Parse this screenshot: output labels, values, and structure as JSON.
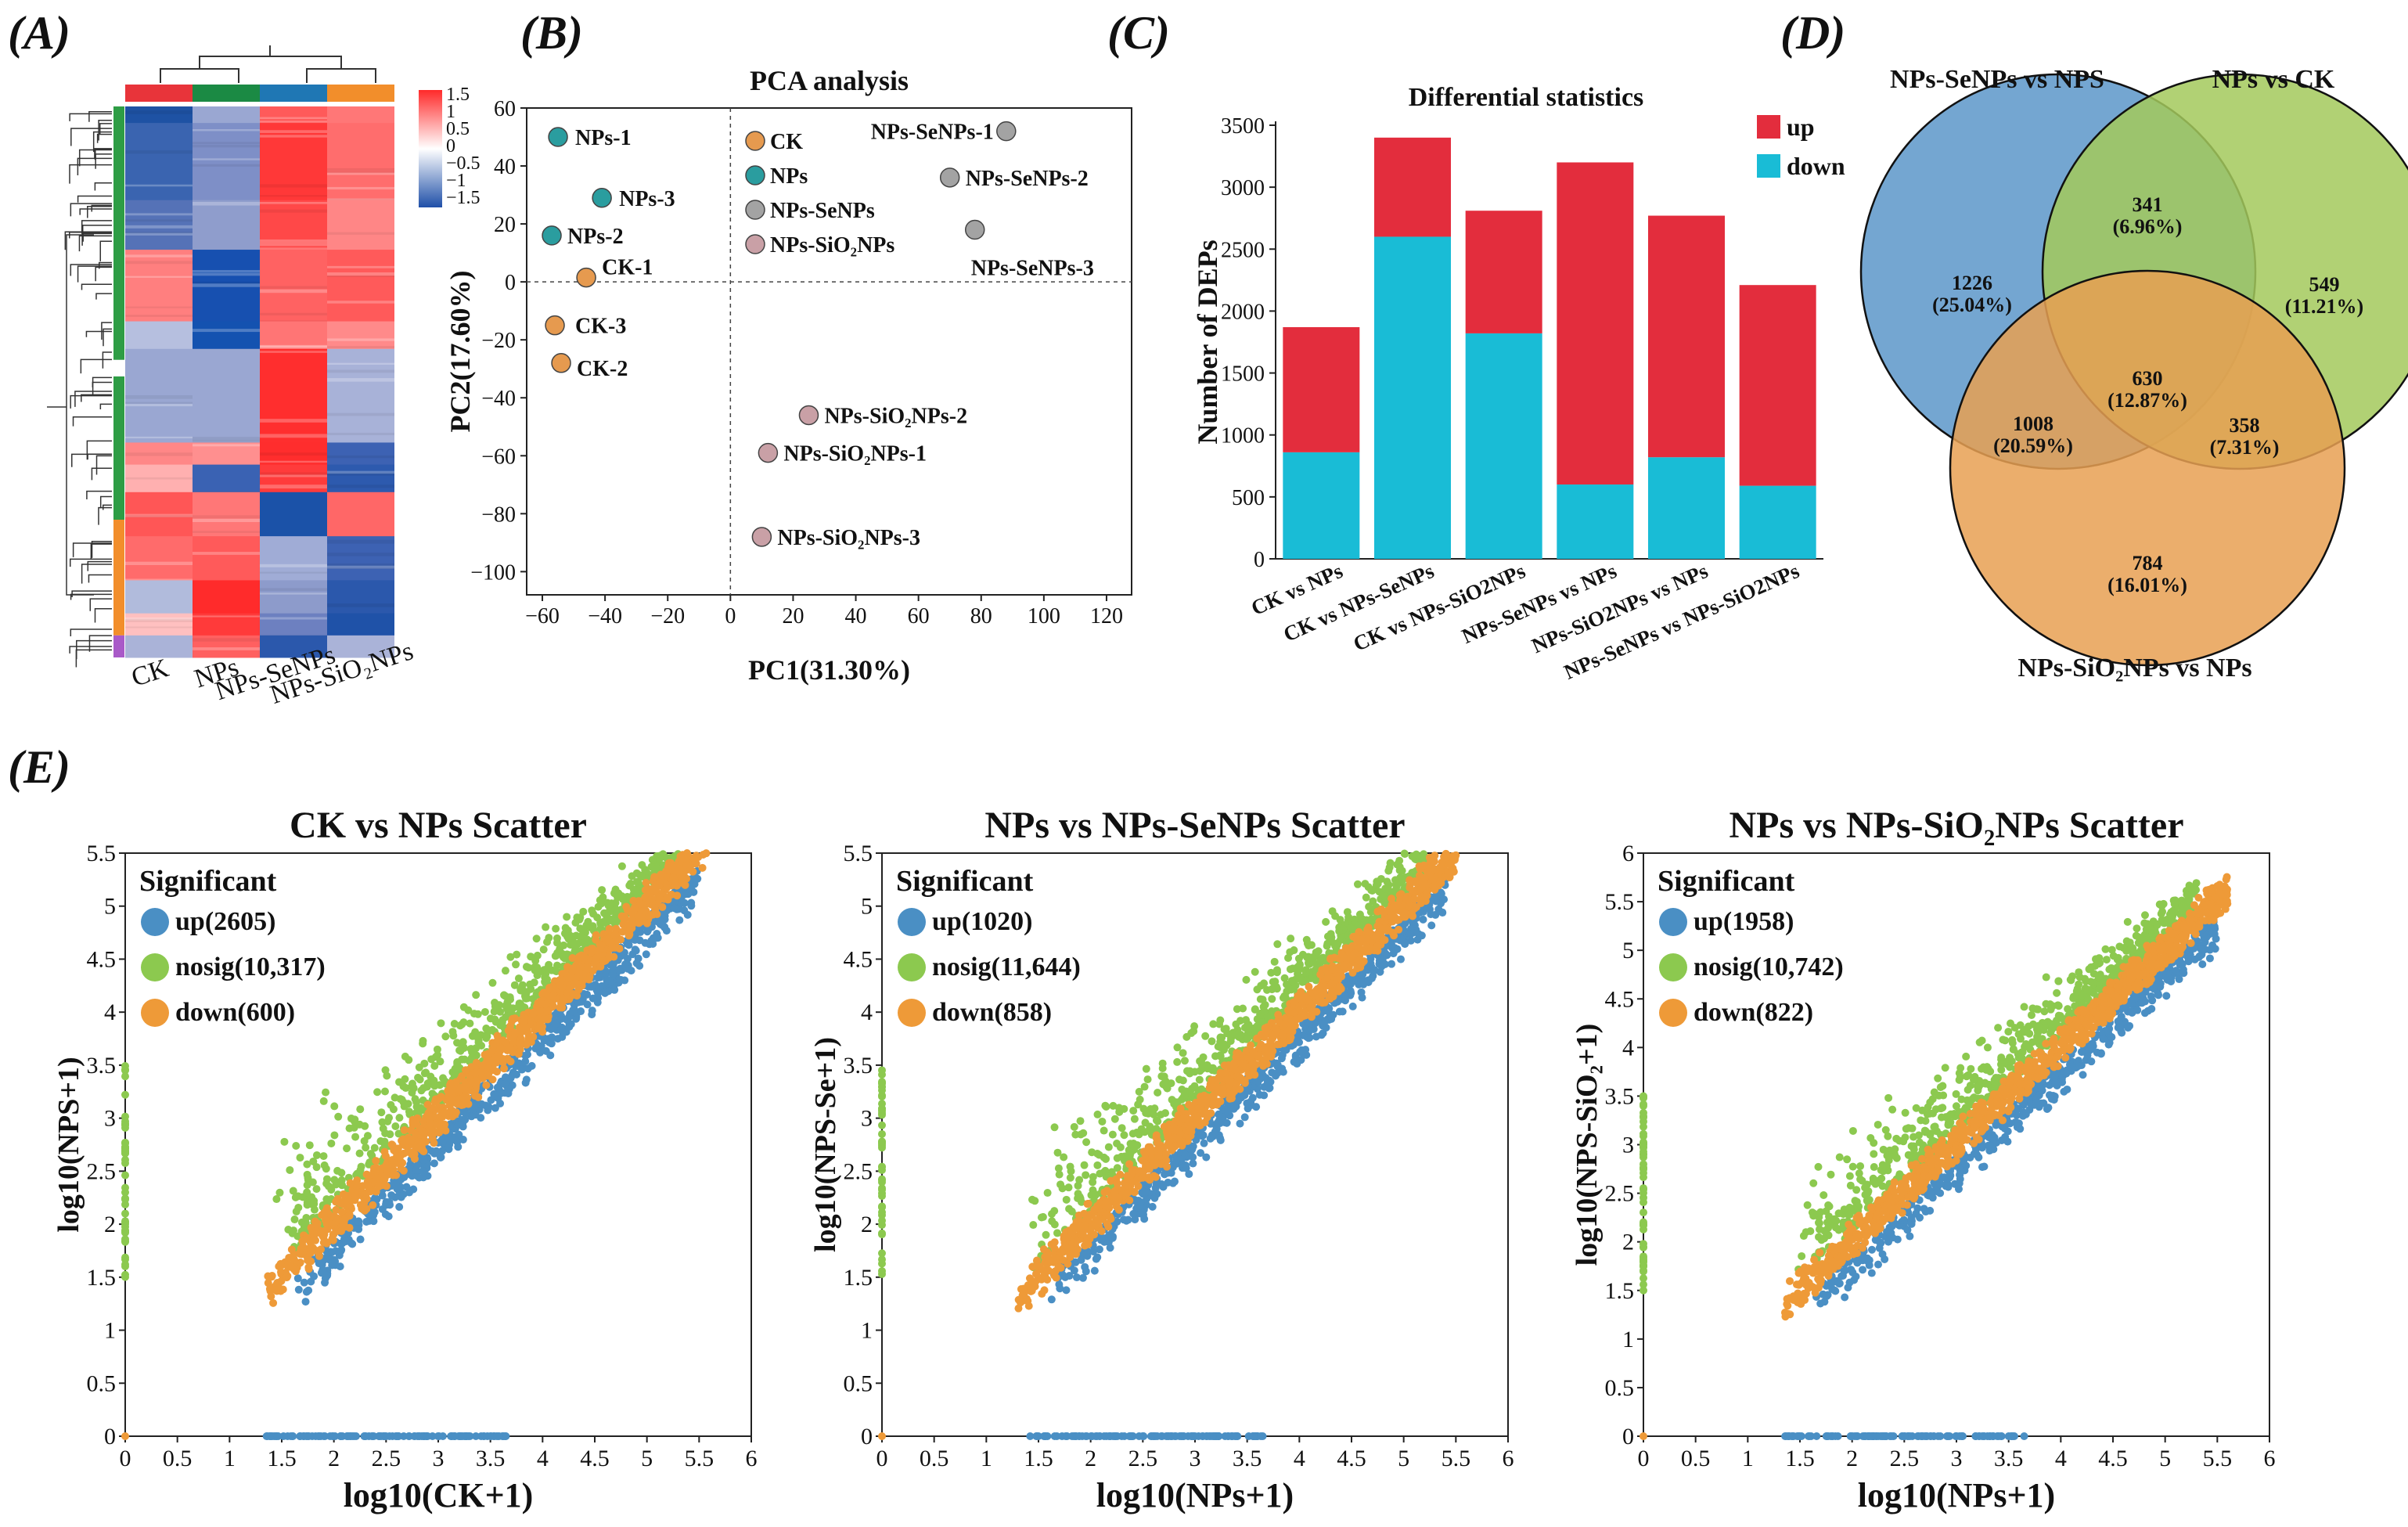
{
  "panels": {
    "a": "(A)",
    "b": "(B)",
    "c": "(C)",
    "d": "(D)",
    "e": "(E)"
  },
  "heatmap": {
    "samples": [
      "CK",
      "NPs",
      "NPs-SeNPs",
      "NPs-SiO₂NPs"
    ],
    "sample_colors": [
      "#e8343a",
      "#1b8a44",
      "#1f77b4",
      "#f28e2b"
    ],
    "scale_ticks": [
      "1.5",
      "1",
      "0.5",
      "0",
      "−0.5",
      "−1",
      "−1.5"
    ],
    "blocks": [
      {
        "h": 0.03,
        "c": [
          "#1e52a4",
          "#9aa7d2",
          "#ff5a5a",
          "#ff7777"
        ]
      },
      {
        "h": 0.14,
        "c": [
          "#3a64b0",
          "#7e8fc7",
          "#ff3838",
          "#ff6d6d"
        ]
      },
      {
        "h": 0.09,
        "c": [
          "#5572b7",
          "#8f9dcc",
          "#ff4848",
          "#ff8686"
        ]
      },
      {
        "h": 0.13,
        "c": [
          "#ff7f7f",
          "#1750b0",
          "#ff6262",
          "#ff5a5a"
        ]
      },
      {
        "h": 0.05,
        "c": [
          "#b6bfdf",
          "#1452b0",
          "#ff7575",
          "#ff8a8a"
        ]
      },
      {
        "h": 0.17,
        "c": [
          "#9aa7d2",
          "#9aa7d2",
          "#ff2e2e",
          "#a8b2d8"
        ]
      },
      {
        "h": 0.04,
        "c": [
          "#ff8787",
          "#ff8f8f",
          "#ff2d2d",
          "#3d62b3"
        ]
      },
      {
        "h": 0.05,
        "c": [
          "#ffb0b0",
          "#3a62b3",
          "#ff3b3b",
          "#2d5aae"
        ]
      },
      {
        "h": 0.08,
        "c": [
          "#ff5656",
          "#ff7777",
          "#1b52a8",
          "#ff6767"
        ]
      },
      {
        "h": 0.08,
        "c": [
          "#ff6b6b",
          "#ff5a5a",
          "#a0acd6",
          "#3d62b3"
        ]
      },
      {
        "h": 0.06,
        "c": [
          "#b1bbdc",
          "#ff2b2b",
          "#8d9bcb",
          "#2b58ac"
        ]
      },
      {
        "h": 0.04,
        "c": [
          "#ffc0c0",
          "#ff3a3a",
          "#6d80c0",
          "#1f52a8"
        ]
      },
      {
        "h": 0.04,
        "c": [
          "#aab3d8",
          "#ff6060",
          "#2b58ac",
          "#aab3d8"
        ]
      }
    ],
    "cluster_colors": [
      {
        "h": 0.46,
        "c": "#2e9d45"
      },
      {
        "h": 0.03,
        "c": "#ffffff"
      },
      {
        "h": 0.26,
        "c": "#2e9d45"
      },
      {
        "h": 0.21,
        "c": "#f28e2b"
      },
      {
        "h": 0.04,
        "c": "#a95ac8"
      }
    ]
  },
  "venn": {
    "sets": [
      "NPs-SeNPs vs NPS",
      "NPs vs CK",
      "NPs-SiO₂NPs vs NPs"
    ],
    "colors": [
      "#5c97c9",
      "#a3c95c",
      "#e8a052"
    ],
    "regions": [
      {
        "count": "1226",
        "pct": "(25.04%)"
      },
      {
        "count": "341",
        "pct": "(6.96%)"
      },
      {
        "count": "549",
        "pct": "(11.21%)"
      },
      {
        "count": "630",
        "pct": "(12.87%)"
      },
      {
        "count": "1008",
        "pct": "(20.59%)"
      },
      {
        "count": "358",
        "pct": "(7.31%)"
      },
      {
        "count": "784",
        "pct": "(16.01%)"
      }
    ]
  },
  "chart_data": [
    {
      "type": "scatter",
      "panel": "B",
      "title": "PCA analysis",
      "xlabel": "PC1(31.30%)",
      "ylabel": "PC2(17.60%)",
      "xlim": [
        -65,
        128
      ],
      "ylim": [
        -108,
        60
      ],
      "xticks": [
        -60,
        -40,
        -20,
        0,
        20,
        40,
        60,
        80,
        100,
        120
      ],
      "yticks": [
        60,
        40,
        20,
        0,
        -20,
        -40,
        -60,
        -80,
        -100
      ],
      "groups": [
        {
          "name": "CK",
          "color": "#e69a4f"
        },
        {
          "name": "NPs",
          "color": "#2a9d9f"
        },
        {
          "name": "NPs-SeNPs",
          "color": "#a3a3a3"
        },
        {
          "name": "NPs-SiO₂NPs",
          "color": "#c9a0a6"
        }
      ],
      "points": [
        {
          "label": "NPs-1",
          "g": 1,
          "x": -55,
          "y": 50
        },
        {
          "label": "NPs-3",
          "g": 1,
          "x": -41,
          "y": 29
        },
        {
          "label": "NPs-2",
          "g": 1,
          "x": -57,
          "y": 16
        },
        {
          "label": "CK-1",
          "g": 0,
          "x": -46,
          "y": 1.5
        },
        {
          "label": "CK-3",
          "g": 0,
          "x": -56,
          "y": -15
        },
        {
          "label": "CK-2",
          "g": 0,
          "x": -54,
          "y": -28
        },
        {
          "label": "NPs-SeNPs-1",
          "g": 2,
          "x": 88,
          "y": 52
        },
        {
          "label": "NPs-SeNPs-2",
          "g": 2,
          "x": 70,
          "y": 36
        },
        {
          "label": "NPs-SeNPs-3",
          "g": 2,
          "x": 78,
          "y": 18
        },
        {
          "label": "NPs-SiO₂NPs-2",
          "g": 3,
          "x": 25,
          "y": -46
        },
        {
          "label": "NPs-SiO₂NPs-1",
          "g": 3,
          "x": 12,
          "y": -59
        },
        {
          "label": "NPs-SiO₂NPs-3",
          "g": 3,
          "x": 10,
          "y": -88
        }
      ]
    },
    {
      "type": "bar",
      "panel": "C",
      "title": "Differential statistics",
      "ylabel": "Number of DEPs",
      "ylim": [
        0,
        3500
      ],
      "yticks": [
        0,
        500,
        1000,
        1500,
        2000,
        2500,
        3000,
        3500
      ],
      "categories": [
        "CK vs NPs",
        "CK vs NPs-SeNPs",
        "CK vs NPs-SiO2NPs",
        "NPs-SeNPs vs NPs",
        "NPs-SiO2NPs vs NPs",
        "NPs-SeNPs vs NPs-SiO2NPs"
      ],
      "series": [
        {
          "name": "down",
          "color": "#19bcd6",
          "values": [
            860,
            2600,
            1820,
            600,
            820,
            590
          ]
        },
        {
          "name": "up",
          "color": "#e32d3d",
          "values": [
            1010,
            800,
            990,
            2600,
            1950,
            1620
          ]
        }
      ]
    },
    {
      "type": "scatter",
      "panel": "E1",
      "title": "CK vs NPs Scatter",
      "xlabel": "log10(CK+1)",
      "ylabel": "log10(NPS+1)",
      "xlim": [
        0,
        6
      ],
      "ylim": [
        0,
        5.5
      ],
      "xticks": [
        "0",
        "0.5",
        "1",
        "1.5",
        "2",
        "2.5",
        "3",
        "3.5",
        "4",
        "4.5",
        "5",
        "5.5",
        "6"
      ],
      "yticks": [
        "0",
        "0.5",
        "1",
        "1.5",
        "2",
        "2.5",
        "3",
        "3.5",
        "4",
        "4.5",
        "5",
        "5.5"
      ],
      "legend_title": "Significant",
      "legend": [
        {
          "label": "up(2605)",
          "color": "#4a8fc4"
        },
        {
          "label": "nosig(10,317)",
          "color": "#8cc94f"
        },
        {
          "label": "down(600)",
          "color": "#ee9a38"
        }
      ],
      "cloud": {
        "xmin": 1.35,
        "xmax": 5.6,
        "seed": 11
      }
    },
    {
      "type": "scatter",
      "panel": "E2",
      "title": "NPs vs NPs-SeNPs Scatter",
      "xlabel": "log10(NPs+1)",
      "ylabel": "log10(NPS-Se+1)",
      "xlim": [
        0,
        6
      ],
      "ylim": [
        0,
        5.5
      ],
      "xticks": [
        "0",
        "0.5",
        "1",
        "1.5",
        "2",
        "2.5",
        "3",
        "3.5",
        "4",
        "4.5",
        "5",
        "5.5",
        "6"
      ],
      "yticks": [
        "0",
        "0.5",
        "1",
        "1.5",
        "2",
        "2.5",
        "3",
        "3.5",
        "4",
        "4.5",
        "5",
        "5.5"
      ],
      "legend_title": "Significant",
      "legend": [
        {
          "label": "up(1020)",
          "color": "#4a8fc4"
        },
        {
          "label": "nosig(11,644)",
          "color": "#8cc94f"
        },
        {
          "label": "down(858)",
          "color": "#ee9a38"
        }
      ],
      "cloud": {
        "xmin": 1.3,
        "xmax": 5.5,
        "seed": 23
      }
    },
    {
      "type": "scatter",
      "panel": "E3",
      "title": "NPs vs NPs-SiO₂NPs Scatter",
      "xlabel": "log10(NPs+1)",
      "ylabel": "log10(NPS-SiO₂+1)",
      "xlim": [
        0,
        6
      ],
      "ylim": [
        0,
        6
      ],
      "xticks": [
        "0",
        "0.5",
        "1",
        "1.5",
        "2",
        "2.5",
        "3",
        "3.5",
        "4",
        "4.5",
        "5",
        "5.5",
        "6"
      ],
      "yticks": [
        "0",
        "0.5",
        "1",
        "1.5",
        "2",
        "2.5",
        "3",
        "3.5",
        "4",
        "4.5",
        "5",
        "5.5",
        "6"
      ],
      "legend_title": "Significant",
      "legend": [
        {
          "label": "up(1958)",
          "color": "#4a8fc4"
        },
        {
          "label": "nosig(10,742)",
          "color": "#8cc94f"
        },
        {
          "label": "down(822)",
          "color": "#ee9a38"
        }
      ],
      "cloud": {
        "xmin": 1.35,
        "xmax": 5.6,
        "seed": 37
      }
    }
  ]
}
